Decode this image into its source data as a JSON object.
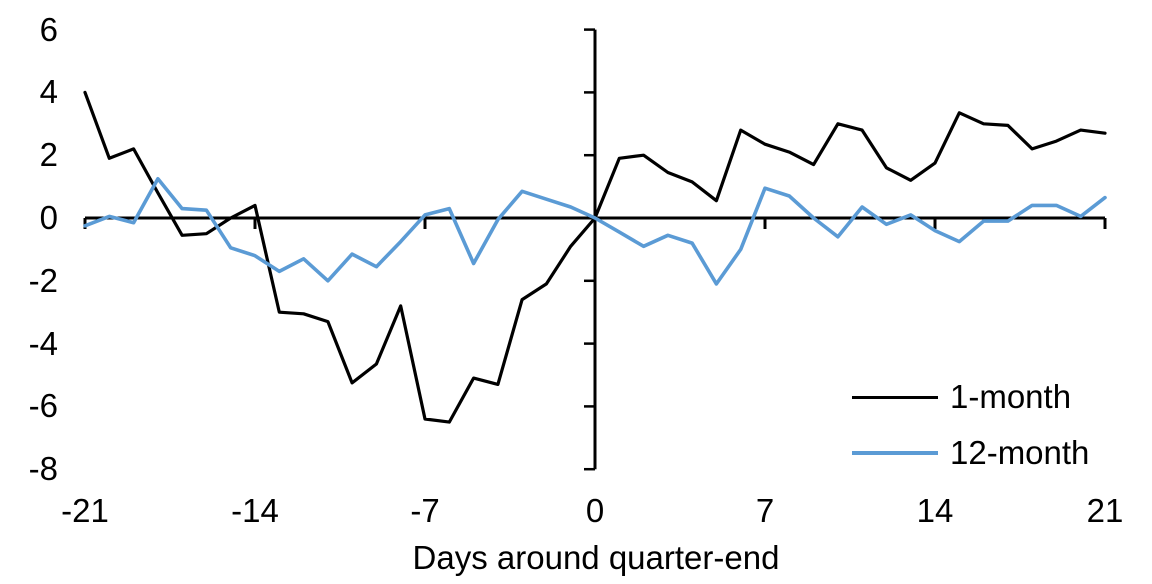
{
  "figure": {
    "background": "#ffffff",
    "text_color": "#000000",
    "axis_color": "#000000"
  },
  "chart_data": {
    "type": "line",
    "title": "",
    "xlabel": "Days around quarter-end",
    "ylabel": "",
    "xlim": [
      -21,
      21
    ],
    "ylim": [
      -8,
      6
    ],
    "x_ticks": [
      -21,
      -14,
      -7,
      0,
      7,
      14,
      21
    ],
    "y_ticks": [
      6,
      4,
      2,
      0,
      -2,
      -4,
      -6,
      -8
    ],
    "grid": false,
    "legend_position": "inside-bottom-right",
    "x": [
      -21,
      -20,
      -19,
      -18,
      -17,
      -16,
      -15,
      -14,
      -13,
      -12,
      -11,
      -10,
      -9,
      -8,
      -7,
      -6,
      -5,
      -4,
      -3,
      -2,
      -1,
      0,
      1,
      2,
      3,
      4,
      5,
      6,
      7,
      8,
      9,
      10,
      11,
      12,
      13,
      14,
      15,
      16,
      17,
      18,
      19,
      20,
      21
    ],
    "series": [
      {
        "name": "1-month",
        "color": "#000000",
        "values": [
          4.0,
          1.9,
          2.2,
          0.8,
          -0.55,
          -0.5,
          0.0,
          0.4,
          -3.0,
          -3.05,
          -3.3,
          -5.25,
          -4.65,
          -2.8,
          -6.4,
          -6.5,
          -5.1,
          -5.3,
          -2.6,
          -2.1,
          -0.9,
          0.0,
          1.9,
          2.0,
          1.45,
          1.15,
          0.55,
          2.8,
          2.35,
          2.1,
          1.7,
          3.0,
          2.8,
          1.6,
          1.2,
          1.75,
          3.35,
          3.0,
          2.95,
          2.2,
          2.45,
          2.8,
          2.7
        ]
      },
      {
        "name": "12-month",
        "color": "#5B9BD5",
        "values": [
          -0.25,
          0.05,
          -0.15,
          1.25,
          0.3,
          0.25,
          -0.95,
          -1.2,
          -1.7,
          -1.3,
          -2.0,
          -1.15,
          -1.55,
          -0.75,
          0.1,
          0.3,
          -1.45,
          -0.05,
          0.85,
          0.6,
          0.35,
          0.0,
          -0.45,
          -0.9,
          -0.55,
          -0.8,
          -2.1,
          -1.0,
          0.95,
          0.7,
          0.0,
          -0.6,
          0.35,
          -0.2,
          0.1,
          -0.4,
          -0.75,
          -0.1,
          -0.1,
          0.4,
          0.4,
          0.05,
          0.65
        ]
      }
    ]
  }
}
